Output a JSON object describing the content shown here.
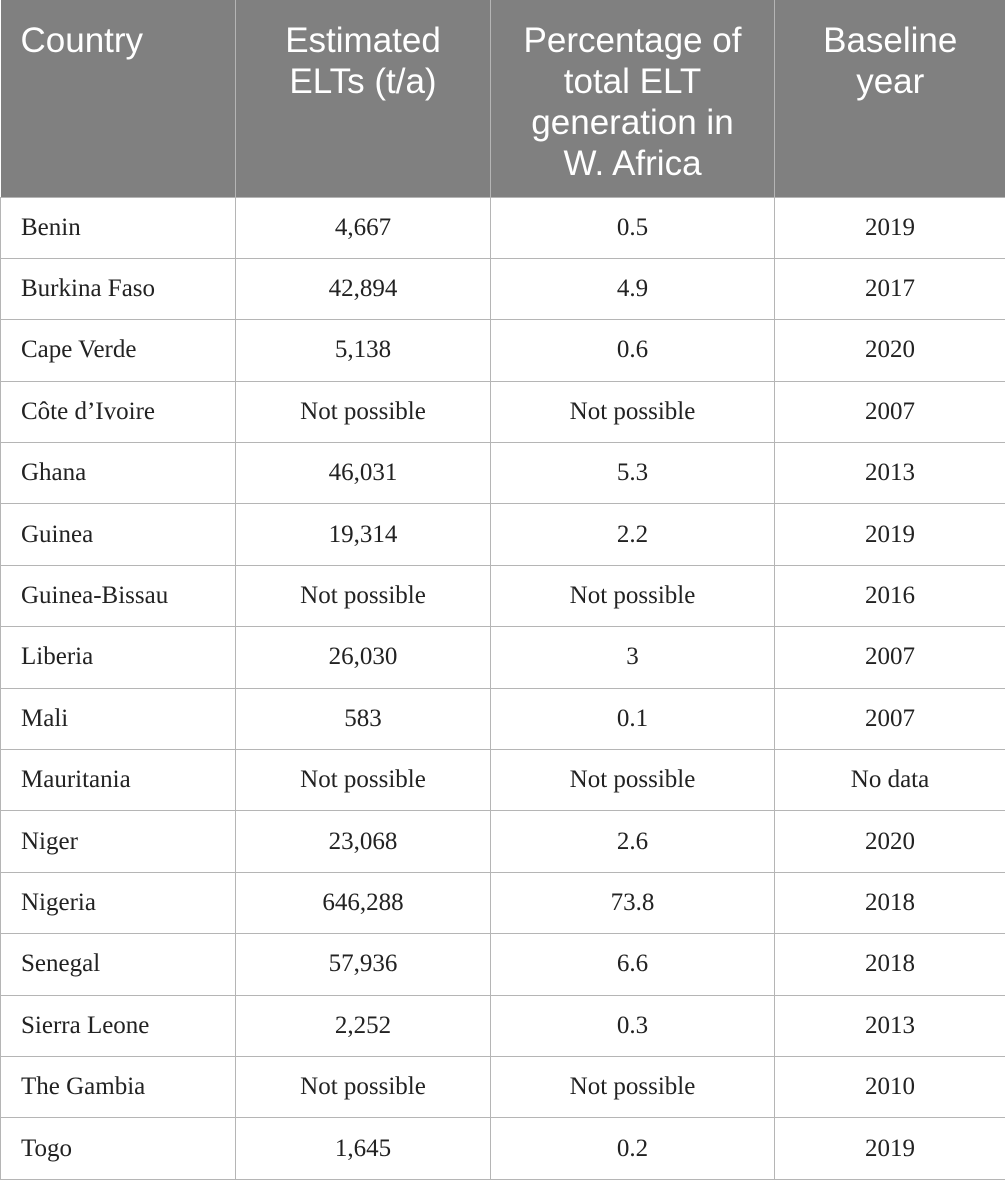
{
  "table": {
    "header": [
      "Country",
      "Estimated ELTs (t/a)",
      "Percentage of total ELT generation in W. Africa",
      "Baseline year"
    ],
    "rows": [
      [
        "Benin",
        "4,667",
        "0.5",
        "2019"
      ],
      [
        "Burkina Faso",
        "42,894",
        "4.9",
        "2017"
      ],
      [
        "Cape Verde",
        "5,138",
        "0.6",
        "2020"
      ],
      [
        "Côte d’Ivoire",
        "Not possible",
        "Not possible",
        "2007"
      ],
      [
        "Ghana",
        "46,031",
        "5.3",
        "2013"
      ],
      [
        "Guinea",
        "19,314",
        "2.2",
        "2019"
      ],
      [
        "Guinea-Bissau",
        "Not possible",
        "Not possible",
        "2016"
      ],
      [
        "Liberia",
        "26,030",
        "3",
        "2007"
      ],
      [
        "Mali",
        "583",
        "0.1",
        "2007"
      ],
      [
        "Mauritania",
        "Not possible",
        "Not possible",
        "No data"
      ],
      [
        "Niger",
        "23,068",
        "2.6",
        "2020"
      ],
      [
        "Nigeria",
        "646,288",
        "73.8",
        "2018"
      ],
      [
        "Senegal",
        "57,936",
        "6.6",
        "2018"
      ],
      [
        "Sierra Leone",
        "2,252",
        "0.3",
        "2013"
      ],
      [
        "The Gambia",
        "Not possible",
        "Not possible",
        "2010"
      ],
      [
        "Togo",
        "1,645",
        "0.2",
        "2019"
      ]
    ]
  }
}
